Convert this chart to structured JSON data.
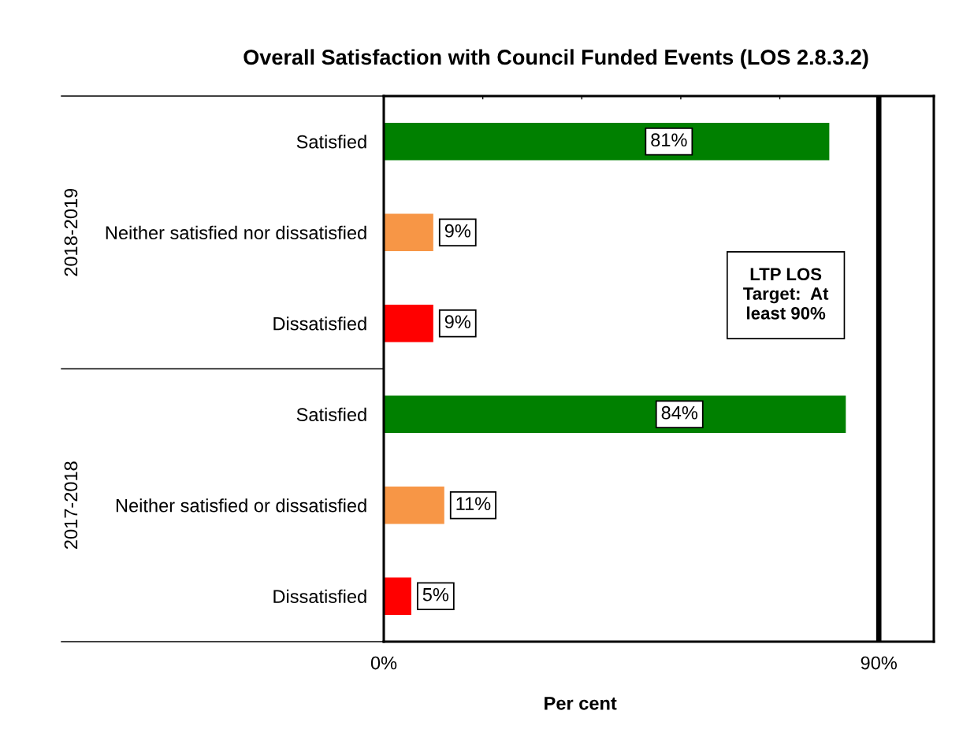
{
  "chart_data": {
    "type": "bar",
    "orientation": "horizontal",
    "title": "Overall Satisfaction with Council Funded Events (LOS 2.8.3.2)",
    "xlabel": "Per cent",
    "categories": [
      "Satisfied",
      "Neither satisfied nor dissatisfied",
      "Dissatisfied",
      "Satisfied",
      "Neither satisfied or dissatisfied",
      "Dissatisfied"
    ],
    "values": [
      81,
      9,
      9,
      84,
      11,
      5
    ],
    "colors": [
      "#008000",
      "#f79646",
      "#ff0000",
      "#008000",
      "#f79646",
      "#ff0000"
    ],
    "value_labels": [
      "81%",
      "9%",
      "9%",
      "84%",
      "11%",
      "5%"
    ],
    "xlim": [
      0,
      100
    ],
    "xticks": [
      {
        "value": 0,
        "label": "0%"
      },
      {
        "value": 18,
        "label": null
      },
      {
        "value": 36,
        "label": null
      },
      {
        "value": 54,
        "label": null
      },
      {
        "value": 72,
        "label": null
      },
      {
        "value": 90,
        "label": "90%"
      }
    ],
    "ref_lines": [
      {
        "axis": "x",
        "value": 90,
        "label": "LTP LOS\nTarget:  At\nleast 90%",
        "color": "#000000"
      }
    ],
    "annotations": [
      "2018-2019",
      "2017-2018"
    ]
  }
}
